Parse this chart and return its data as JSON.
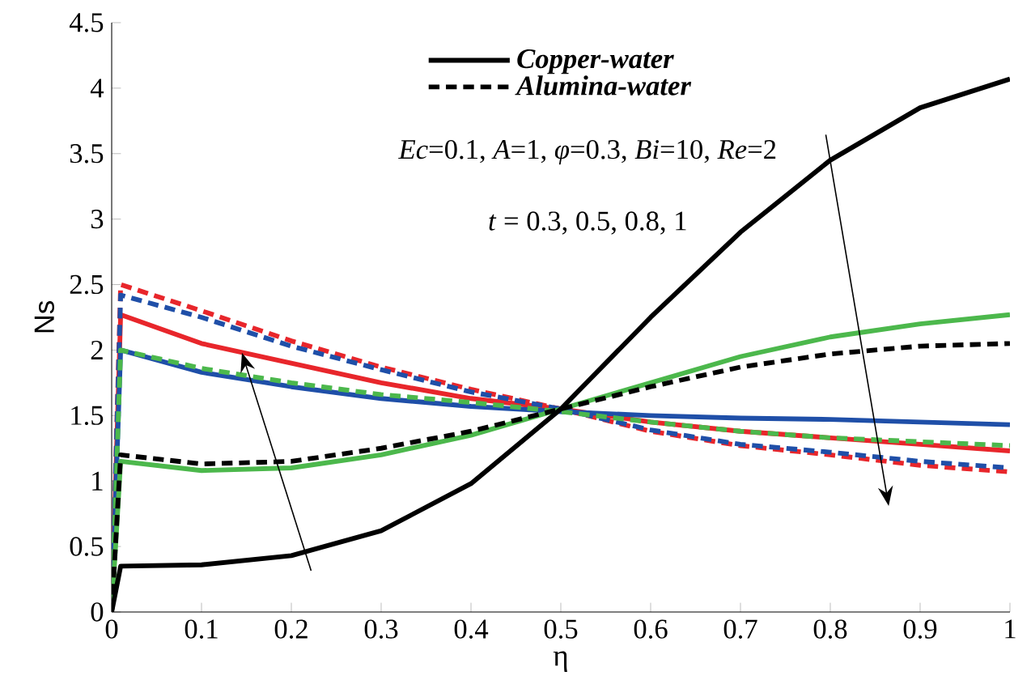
{
  "chart_data": {
    "type": "line",
    "xlabel": "η",
    "ylabel": "Ns",
    "xlim": [
      0,
      1
    ],
    "ylim": [
      0,
      4.5
    ],
    "xticks": [
      0,
      0.1,
      0.2,
      0.3,
      0.4,
      0.5,
      0.6,
      0.7,
      0.8,
      0.9,
      1
    ],
    "yticks": [
      0,
      0.5,
      1,
      1.5,
      2,
      2.5,
      3,
      3.5,
      4,
      4.5
    ],
    "grid": false,
    "marker": "none",
    "legend": "top",
    "x": [
      0,
      0.01,
      0.1,
      0.2,
      0.3,
      0.4,
      0.5,
      0.6,
      0.7,
      0.8,
      0.9,
      1
    ],
    "series": [
      {
        "color": "#e8262b",
        "line_style": "solid",
        "values": [
          0,
          2.27,
          2.05,
          1.9,
          1.75,
          1.63,
          1.55,
          1.45,
          1.38,
          1.33,
          1.28,
          1.23
        ]
      },
      {
        "color": "#e8262b",
        "line_style": "dashed",
        "values": [
          0,
          2.5,
          2.3,
          2.07,
          1.87,
          1.7,
          1.55,
          1.38,
          1.27,
          1.2,
          1.12,
          1.07
        ]
      },
      {
        "color": "#1f4fa8",
        "line_style": "solid",
        "values": [
          0,
          2.0,
          1.83,
          1.72,
          1.63,
          1.57,
          1.53,
          1.5,
          1.48,
          1.47,
          1.45,
          1.43
        ]
      },
      {
        "color": "#1f4fa8",
        "line_style": "dashed",
        "values": [
          0,
          2.42,
          2.25,
          2.03,
          1.85,
          1.68,
          1.55,
          1.39,
          1.28,
          1.22,
          1.15,
          1.1
        ]
      },
      {
        "color": "#4cb84c",
        "line_style": "solid",
        "values": [
          0,
          1.15,
          1.08,
          1.1,
          1.2,
          1.35,
          1.55,
          1.75,
          1.95,
          2.1,
          2.2,
          2.27
        ]
      },
      {
        "color": "#4cb84c",
        "line_style": "dashed",
        "values": [
          0,
          2.0,
          1.86,
          1.75,
          1.66,
          1.6,
          1.53,
          1.45,
          1.38,
          1.33,
          1.3,
          1.27
        ]
      },
      {
        "name": "Copper-water",
        "color": "#000000",
        "line_style": "solid",
        "values": [
          0,
          0.35,
          0.36,
          0.43,
          0.62,
          0.98,
          1.55,
          2.25,
          2.9,
          3.45,
          3.85,
          4.07
        ]
      },
      {
        "name": "Alumina-water",
        "color": "#000000",
        "line_style": "dashed",
        "values": [
          0,
          1.2,
          1.13,
          1.15,
          1.25,
          1.38,
          1.55,
          1.72,
          1.87,
          1.97,
          2.03,
          2.05
        ]
      }
    ],
    "annotations": [
      "*Ec*=0.1, *A*=1, *φ*=0.3, *Bi*=10, *Re*=2",
      "*t* = 0.3, 0.5, 0.8, 1"
    ]
  }
}
